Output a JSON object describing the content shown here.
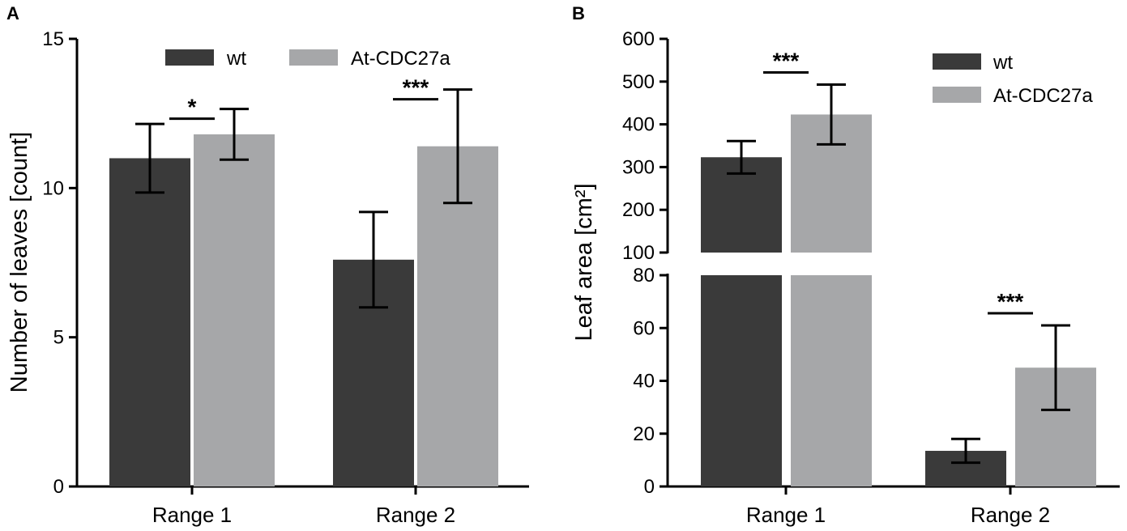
{
  "colors": {
    "wt": "#3a3a3a",
    "At-CDC27a": "#a6a7a9",
    "axis": "#000000"
  },
  "chart_data": [
    {
      "panel": "A",
      "type": "bar",
      "title": "",
      "xlabel": "",
      "ylabel": "Number of leaves [count]",
      "ylim": [
        0,
        15
      ],
      "yticks": [
        {
          "value": 0,
          "label": "0"
        },
        {
          "value": 5,
          "label": "5"
        },
        {
          "value": 10,
          "label": "10"
        },
        {
          "value": 15,
          "label": "15"
        }
      ],
      "categories": [
        "Range 1",
        "Range 2"
      ],
      "series": [
        {
          "name": "wt",
          "values": [
            11.0,
            7.6
          ],
          "errors": [
            1.15,
            1.6
          ]
        },
        {
          "name": "At-CDC27a",
          "values": [
            11.8,
            11.4
          ],
          "errors": [
            0.85,
            1.9
          ]
        }
      ],
      "significance": [
        "*",
        "***"
      ],
      "legend_position": "top",
      "grid": false
    },
    {
      "panel": "B",
      "type": "bar",
      "title": "",
      "xlabel": "",
      "ylabel": "Leaf area [cm²]",
      "axis_break": {
        "lower_range": [
          0,
          80
        ],
        "upper_range": [
          100,
          600
        ]
      },
      "yticks": [
        {
          "value": 0,
          "label": "0"
        },
        {
          "value": 20,
          "label": "20"
        },
        {
          "value": 40,
          "label": "40"
        },
        {
          "value": 60,
          "label": "60"
        },
        {
          "value": 80,
          "label": "80"
        },
        {
          "value": 100,
          "label": "100"
        },
        {
          "value": 200,
          "label": "200"
        },
        {
          "value": 300,
          "label": "300"
        },
        {
          "value": 400,
          "label": "400"
        },
        {
          "value": 500,
          "label": "500"
        },
        {
          "value": 600,
          "label": "600"
        }
      ],
      "categories": [
        "Range 1",
        "Range 2"
      ],
      "series": [
        {
          "name": "wt",
          "values": [
            323,
            13.5
          ],
          "errors": [
            38,
            4.5
          ]
        },
        {
          "name": "At-CDC27a",
          "values": [
            423,
            45
          ],
          "errors": [
            70,
            16
          ]
        }
      ],
      "significance": [
        "***",
        "***"
      ],
      "legend_position": "top-right",
      "grid": false
    }
  ]
}
